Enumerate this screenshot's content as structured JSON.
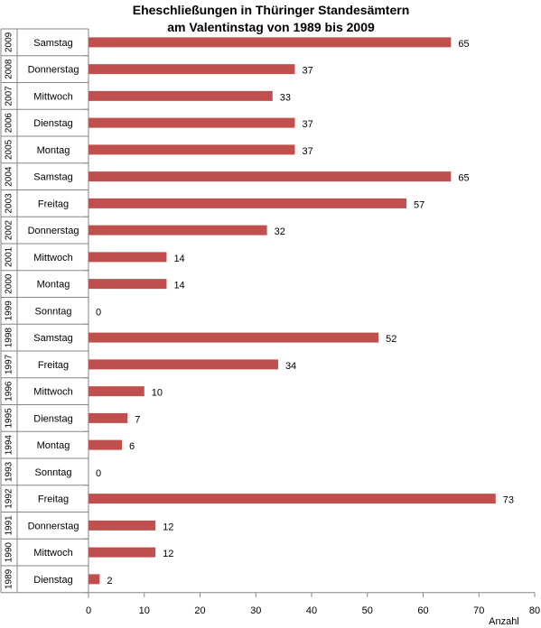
{
  "chart_data": {
    "type": "bar",
    "orientation": "horizontal",
    "title": [
      "Eheschließungen in Thüringer Standesämtern",
      "am Valentinstag von 1989 bis 2009"
    ],
    "xlabel": "Anzahl",
    "xlim": [
      0,
      80
    ],
    "xticks": [
      0,
      10,
      20,
      30,
      40,
      50,
      60,
      70,
      80
    ],
    "bar_color": "#c0504d",
    "grid": false,
    "legend": "none",
    "rows": [
      {
        "year": "2009",
        "day": "Samstag",
        "value": 65
      },
      {
        "year": "2008",
        "day": "Donnerstag",
        "value": 37
      },
      {
        "year": "2007",
        "day": "Mittwoch",
        "value": 33
      },
      {
        "year": "2006",
        "day": "Dienstag",
        "value": 37
      },
      {
        "year": "2005",
        "day": "Montag",
        "value": 37
      },
      {
        "year": "2004",
        "day": "Samstag",
        "value": 65
      },
      {
        "year": "2003",
        "day": "Freitag",
        "value": 57
      },
      {
        "year": "2002",
        "day": "Donnerstag",
        "value": 32
      },
      {
        "year": "2001",
        "day": "Mittwoch",
        "value": 14
      },
      {
        "year": "2000",
        "day": "Montag",
        "value": 14
      },
      {
        "year": "1999",
        "day": "Sonntag",
        "value": 0
      },
      {
        "year": "1998",
        "day": "Samstag",
        "value": 52
      },
      {
        "year": "1997",
        "day": "Freitag",
        "value": 34
      },
      {
        "year": "1996",
        "day": "Mittwoch",
        "value": 10
      },
      {
        "year": "1995",
        "day": "Dienstag",
        "value": 7
      },
      {
        "year": "1994",
        "day": "Montag",
        "value": 6
      },
      {
        "year": "1993",
        "day": "Sonntag",
        "value": 0
      },
      {
        "year": "1992",
        "day": "Freitag",
        "value": 73
      },
      {
        "year": "1991",
        "day": "Donnerstag",
        "value": 12
      },
      {
        "year": "1990",
        "day": "Mittwoch",
        "value": 12
      },
      {
        "year": "1989",
        "day": "Dienstag",
        "value": 2
      }
    ]
  }
}
